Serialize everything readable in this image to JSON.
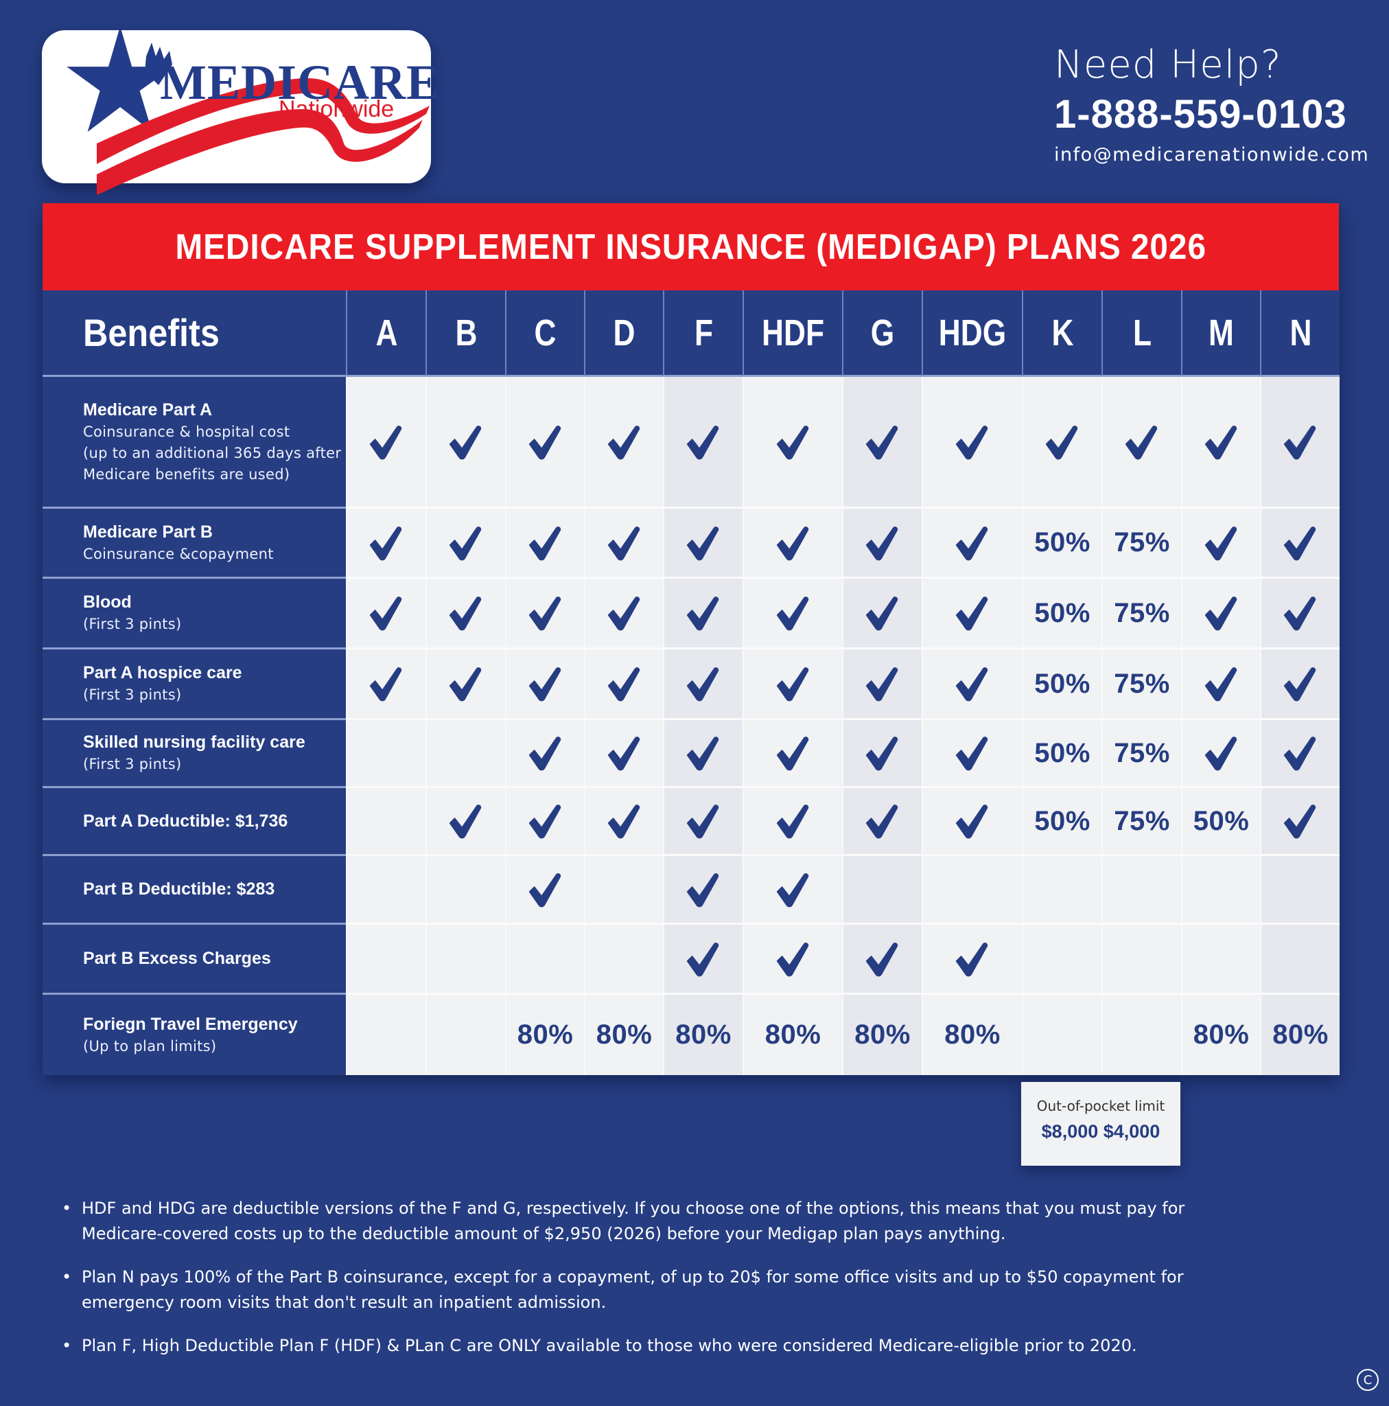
{
  "logo": {
    "brand": "MEDICARE",
    "sub": "Nationwide",
    "colors": {
      "blue": "#243d8a",
      "red": "#e21d2b"
    }
  },
  "contact": {
    "heading": "Need Help?",
    "phone": "1-888-559-0103",
    "email": "info@medicarenationwide.com"
  },
  "table": {
    "title": "MEDICARE SUPPLEMENT INSURANCE (MEDIGAP) PLANS 2026",
    "benefits_header": "Benefits",
    "plans": [
      "A",
      "B",
      "C",
      "D",
      "F",
      "HDF",
      "G",
      "HDG",
      "K",
      "L",
      "M",
      "N"
    ],
    "shaded_plans": [
      "F",
      "G",
      "N"
    ],
    "rows": [
      {
        "title": "Medicare Part A",
        "sub": [
          "Coinsurance & hospital cost",
          "(up to an additional 365 days after",
          "Medicare benefits are used)"
        ],
        "values": [
          "check",
          "check",
          "check",
          "check",
          "check",
          "check",
          "check",
          "check",
          "check",
          "check",
          "check",
          "check"
        ]
      },
      {
        "title": "Medicare Part B",
        "sub": [
          "Coinsurance &copayment"
        ],
        "values": [
          "check",
          "check",
          "check",
          "check",
          "check",
          "check",
          "check",
          "check",
          "50%",
          "75%",
          "check",
          "check"
        ]
      },
      {
        "title": "Blood",
        "sub": [
          "(First 3 pints)"
        ],
        "values": [
          "check",
          "check",
          "check",
          "check",
          "check",
          "check",
          "check",
          "check",
          "50%",
          "75%",
          "check",
          "check"
        ]
      },
      {
        "title": "Part A hospice care",
        "sub": [
          "(First 3 pints)"
        ],
        "values": [
          "check",
          "check",
          "check",
          "check",
          "check",
          "check",
          "check",
          "check",
          "50%",
          "75%",
          "check",
          "check"
        ]
      },
      {
        "title": "Skilled nursing facility care",
        "sub": [
          "(First 3 pints)"
        ],
        "values": [
          "",
          "",
          "check",
          "check",
          "check",
          "check",
          "check",
          "check",
          "50%",
          "75%",
          "check",
          "check"
        ]
      },
      {
        "title": "Part A Deductible: $1,736",
        "sub": [],
        "values": [
          "",
          "check",
          "check",
          "check",
          "check",
          "check",
          "check",
          "check",
          "50%",
          "75%",
          "50%",
          "check"
        ]
      },
      {
        "title": "Part B Deductible: $283",
        "sub": [],
        "values": [
          "",
          "",
          "check",
          "",
          "check",
          "check",
          "",
          "",
          "",
          "",
          "",
          ""
        ]
      },
      {
        "title": "Part B Excess Charges",
        "sub": [],
        "values": [
          "",
          "",
          "",
          "",
          "check",
          "check",
          "check",
          "check",
          "",
          "",
          "",
          ""
        ]
      },
      {
        "title": "Foriegn Travel Emergency",
        "sub": [
          "(Up to plan limits)"
        ],
        "values": [
          "",
          "",
          "80%",
          "80%",
          "80%",
          "80%",
          "80%",
          "80%",
          "",
          "",
          "80%",
          "80%"
        ]
      }
    ],
    "out_of_pocket": {
      "label": "Out-of-pocket limit",
      "values": "$8,000 $4,000",
      "plans": [
        "K",
        "L"
      ]
    }
  },
  "footnotes": [
    "HDF and HDG are deductible versions of the F and G, respectively. If you choose one of the options, this means that you must pay for Medicare-covered costs up to the deductible amount of $2,950 (2026) before your Medigap plan pays anything.",
    "Plan N pays 100% of the Part B coinsurance, except for a copayment, of up to 20$ for some office visits and up to $50 copayment for emergency room visits that don't result an inpatient admission.",
    "Plan F, High Deductible Plan F (HDF) & PLan C are ONLY available to those who were considered Medicare-eligible prior to 2020."
  ],
  "footnote_bullet": "•",
  "copyright_symbol": "C",
  "colors": {
    "background": "#263d82",
    "title_red": "#ec1c24",
    "cell_light": "#f1f2f3",
    "cell_shaded": "#e6e8ee",
    "accent_blue": "#263d82"
  }
}
